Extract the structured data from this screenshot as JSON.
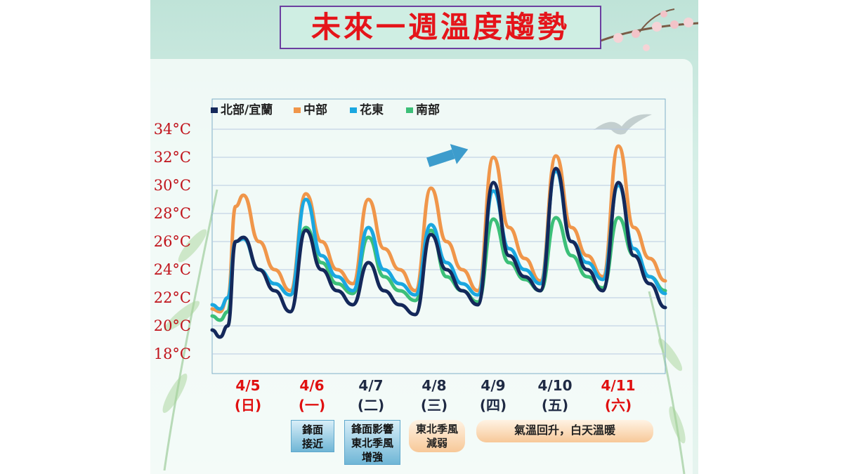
{
  "title": "未來一週溫度趨勢",
  "colors": {
    "north": "#14285a",
    "central": "#f0964a",
    "east": "#1aa7e0",
    "south": "#3cbf78",
    "tick_red": "#e01010",
    "tick_dark": "#1f2a44"
  },
  "notes": {
    "d46": "鋒面\n接近",
    "d47": "鋒面影響\n東北季風\n增強",
    "d48": "東北季風\n減弱",
    "d49_11": "氣溫回升，白天溫暖"
  },
  "chart_data": {
    "type": "line",
    "title": "未來一週溫度趨勢",
    "legend": "top-left",
    "grid": true,
    "ylim": [
      18,
      34
    ],
    "yticks": [
      "18°C",
      "20°C",
      "22°C",
      "24°C",
      "26°C",
      "28°C",
      "30°C",
      "32°C",
      "34°C"
    ],
    "categories": [
      {
        "date": "4/5",
        "day": "(日)",
        "highlight": true
      },
      {
        "date": "4/6",
        "day": "(一)",
        "highlight": true
      },
      {
        "date": "4/7",
        "day": "(二)",
        "highlight": false
      },
      {
        "date": "4/8",
        "day": "(三)",
        "highlight": false
      },
      {
        "date": "4/9",
        "day": "(四)",
        "highlight": false
      },
      {
        "date": "4/10",
        "day": "(五)",
        "highlight": false
      },
      {
        "date": "4/11",
        "day": "(六)",
        "highlight": true
      }
    ],
    "series": [
      {
        "name": "北部/宜蘭",
        "key": "north",
        "points": [
          [
            0,
            19.7
          ],
          [
            0.25,
            19.2
          ],
          [
            0.5,
            20
          ],
          [
            0.75,
            26
          ],
          [
            1,
            26.3
          ],
          [
            1.5,
            24
          ],
          [
            2,
            22.5
          ],
          [
            2.5,
            21
          ],
          [
            3,
            26.8
          ],
          [
            3.5,
            24
          ],
          [
            4,
            22.5
          ],
          [
            4.5,
            21.5
          ],
          [
            5,
            24.5
          ],
          [
            5.5,
            22.5
          ],
          [
            6,
            21.5
          ],
          [
            6.5,
            20.8
          ],
          [
            7,
            26.5
          ],
          [
            7.5,
            24
          ],
          [
            8,
            22.5
          ],
          [
            8.5,
            21.5
          ],
          [
            9,
            30.2
          ],
          [
            9.5,
            25
          ],
          [
            10,
            23.5
          ],
          [
            10.5,
            22.5
          ],
          [
            11,
            31.2
          ],
          [
            11.5,
            26
          ],
          [
            12,
            24
          ],
          [
            12.5,
            22.5
          ],
          [
            13,
            30.2
          ],
          [
            13.5,
            25
          ],
          [
            14,
            23
          ],
          [
            14.5,
            21.3
          ]
        ]
      },
      {
        "name": "中部",
        "key": "central",
        "points": [
          [
            0,
            21.2
          ],
          [
            0.25,
            21
          ],
          [
            0.5,
            22
          ],
          [
            0.75,
            28.5
          ],
          [
            1,
            29.3
          ],
          [
            1.5,
            26
          ],
          [
            2,
            24
          ],
          [
            2.5,
            22.5
          ],
          [
            3,
            29.4
          ],
          [
            3.5,
            26
          ],
          [
            4,
            24
          ],
          [
            4.5,
            23
          ],
          [
            5,
            29
          ],
          [
            5.5,
            25.5
          ],
          [
            6,
            24
          ],
          [
            6.5,
            22.5
          ],
          [
            7,
            29.8
          ],
          [
            7.5,
            26
          ],
          [
            8,
            24
          ],
          [
            8.5,
            22.5
          ],
          [
            9,
            32
          ],
          [
            9.5,
            27
          ],
          [
            10,
            24.8
          ],
          [
            10.5,
            23.2
          ],
          [
            11,
            32.1
          ],
          [
            11.5,
            27
          ],
          [
            12,
            25
          ],
          [
            12.5,
            23.5
          ],
          [
            13,
            32.8
          ],
          [
            13.5,
            27
          ],
          [
            14,
            24.8
          ],
          [
            14.5,
            23.2
          ]
        ]
      },
      {
        "name": "花東",
        "key": "east",
        "points": [
          [
            0,
            21.5
          ],
          [
            0.25,
            21.2
          ],
          [
            0.5,
            22
          ],
          [
            0.75,
            26
          ],
          [
            1,
            26.2
          ],
          [
            1.5,
            24
          ],
          [
            2,
            23
          ],
          [
            2.5,
            22.2
          ],
          [
            3,
            29
          ],
          [
            3.5,
            25
          ],
          [
            4,
            23.5
          ],
          [
            4.5,
            22.5
          ],
          [
            5,
            27
          ],
          [
            5.5,
            24
          ],
          [
            6,
            23
          ],
          [
            6.5,
            22.2
          ],
          [
            7,
            27.2
          ],
          [
            7.5,
            24.5
          ],
          [
            8,
            23
          ],
          [
            8.5,
            22.2
          ],
          [
            9,
            29.6
          ],
          [
            9.5,
            25.5
          ],
          [
            10,
            24
          ],
          [
            10.5,
            23
          ],
          [
            11,
            31
          ],
          [
            11.5,
            26
          ],
          [
            12,
            24.5
          ],
          [
            12.5,
            23.3
          ],
          [
            13,
            30
          ],
          [
            13.5,
            25.5
          ],
          [
            14,
            23.5
          ],
          [
            14.5,
            22.3
          ]
        ]
      },
      {
        "name": "南部",
        "key": "south",
        "points": [
          [
            0,
            20.7
          ],
          [
            0.25,
            20.4
          ],
          [
            0.5,
            21
          ],
          [
            0.75,
            26
          ],
          [
            1,
            26.2
          ],
          [
            1.5,
            24
          ],
          [
            2,
            23
          ],
          [
            2.5,
            22.2
          ],
          [
            3,
            27
          ],
          [
            3.5,
            24.5
          ],
          [
            4,
            23
          ],
          [
            4.5,
            22.3
          ],
          [
            5,
            26.3
          ],
          [
            5.5,
            23.5
          ],
          [
            6,
            22.5
          ],
          [
            6.5,
            21.8
          ],
          [
            7,
            26.8
          ],
          [
            7.5,
            23.5
          ],
          [
            8,
            22.5
          ],
          [
            8.5,
            21.7
          ],
          [
            9,
            27.6
          ],
          [
            9.5,
            24.5
          ],
          [
            10,
            23.3
          ],
          [
            10.5,
            22.5
          ],
          [
            11,
            27.7
          ],
          [
            11.5,
            25
          ],
          [
            12,
            23.5
          ],
          [
            12.5,
            22.7
          ],
          [
            13,
            27.7
          ],
          [
            13.5,
            25
          ],
          [
            14,
            23.5
          ],
          [
            14.5,
            22.5
          ]
        ]
      }
    ]
  }
}
